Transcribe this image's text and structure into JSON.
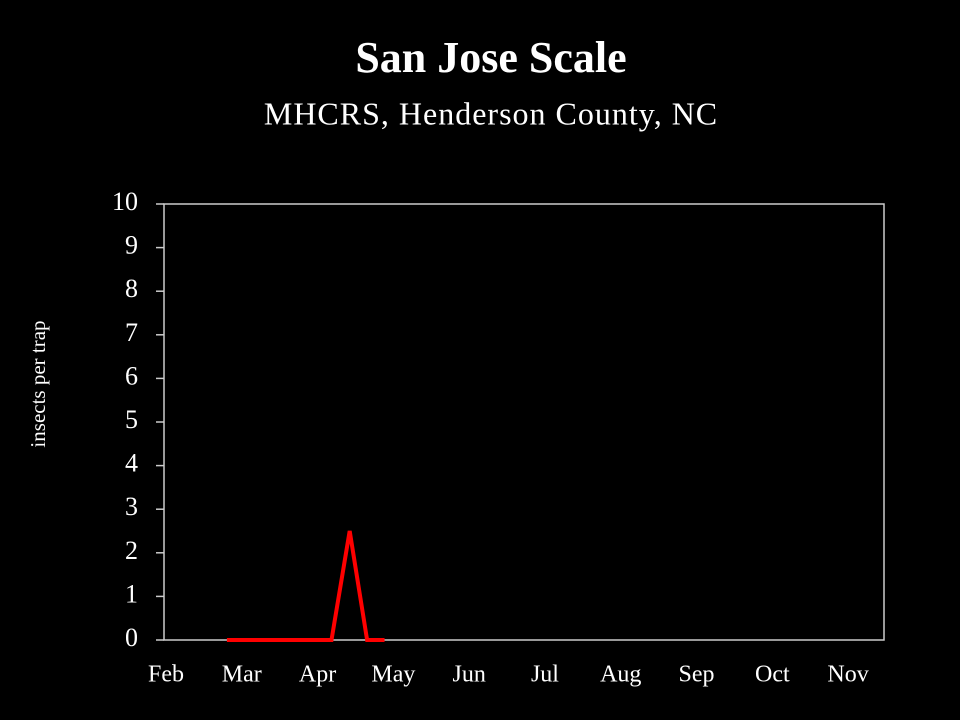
{
  "chart_data": {
    "type": "line",
    "title": "San Jose Scale",
    "subtitle": "MHCRS, Henderson County, NC",
    "ylabel": "insects per trap",
    "x": [
      0.83,
      1.06,
      1.29,
      1.52,
      1.75,
      1.98,
      2.21,
      2.45,
      2.68,
      2.91
    ],
    "series": [
      {
        "color": "#ff0000",
        "values": [
          0,
          0,
          0,
          0,
          0,
          0,
          0,
          2.5,
          0,
          0
        ]
      }
    ],
    "xlim": [
      0,
      9.5
    ],
    "xticks": [
      {
        "value": 0,
        "label": "Feb"
      },
      {
        "value": 1,
        "label": "Mar"
      },
      {
        "value": 2,
        "label": "Apr"
      },
      {
        "value": 3,
        "label": "May"
      },
      {
        "value": 4,
        "label": "Jun"
      },
      {
        "value": 5,
        "label": "Jul"
      },
      {
        "value": 6,
        "label": "Aug"
      },
      {
        "value": 7,
        "label": "Sep"
      },
      {
        "value": 8,
        "label": "Oct"
      },
      {
        "value": 9,
        "label": "Nov"
      }
    ],
    "ylim": [
      0,
      10
    ],
    "yticks": [
      0,
      1,
      2,
      3,
      4,
      5,
      6,
      7,
      8,
      9,
      10
    ],
    "grid": false
  }
}
